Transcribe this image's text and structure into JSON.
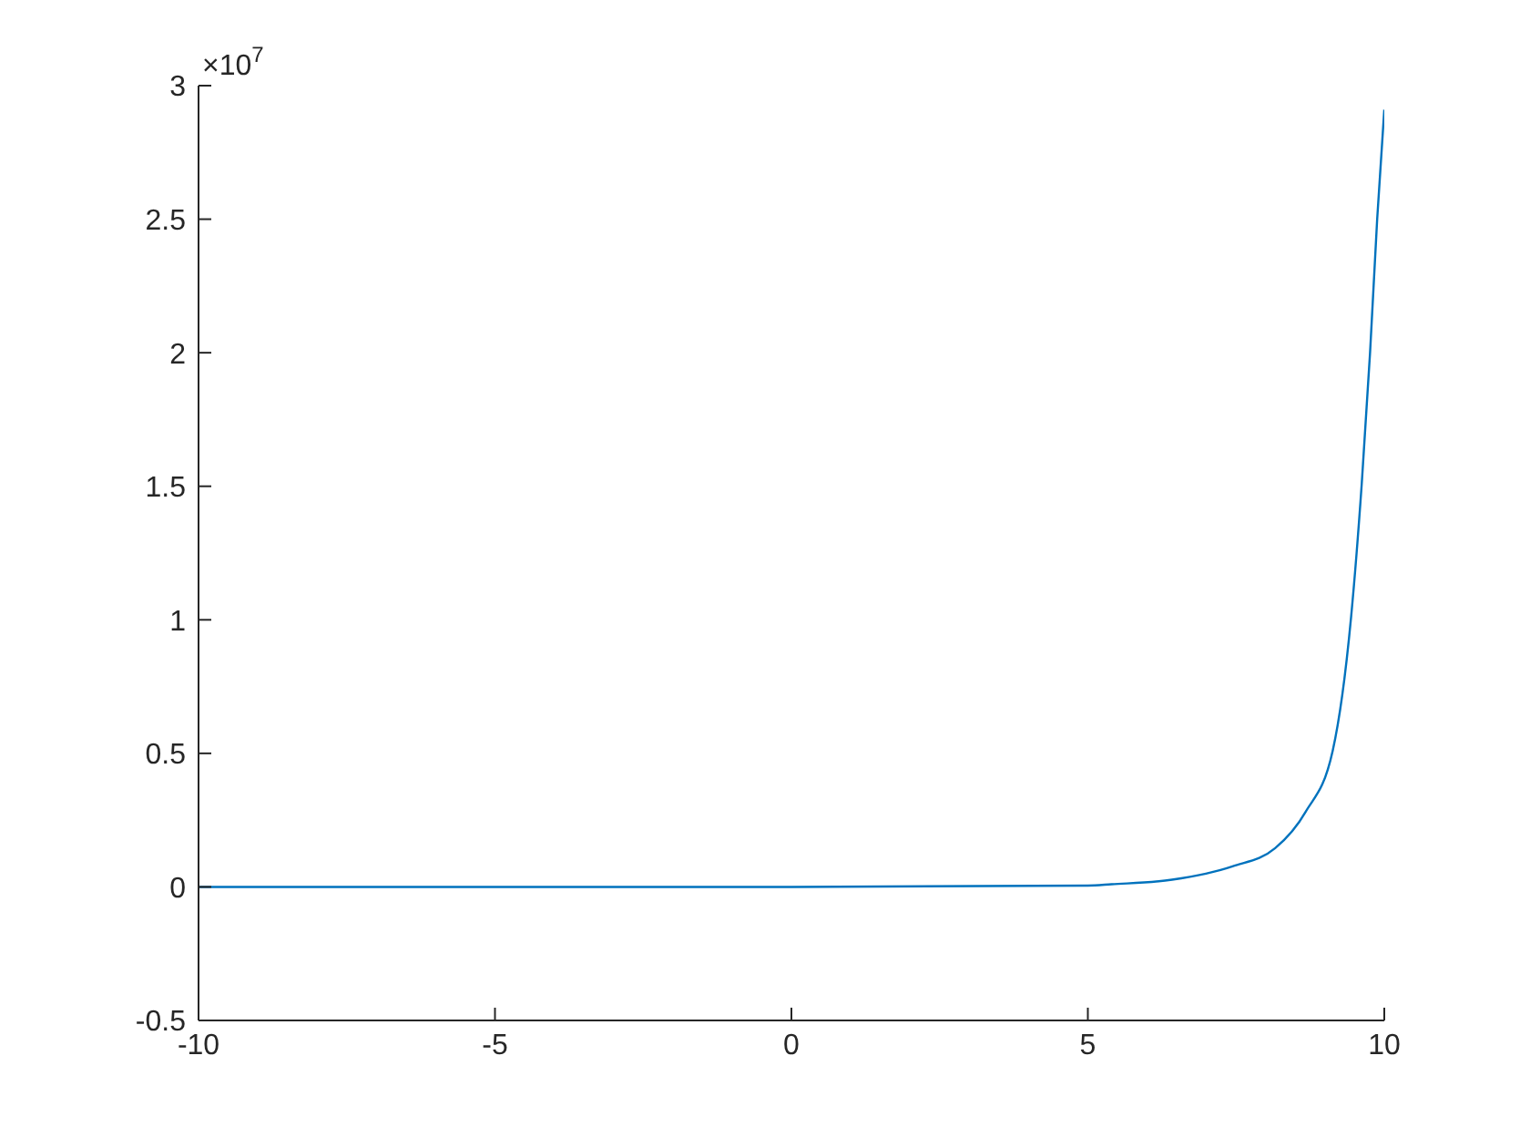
{
  "chart_data": {
    "type": "line",
    "annotations": [
      "×10$^{7}$"
    ],
    "x": [
      -10,
      -5,
      0,
      5,
      5.4,
      6.42,
      7.44,
      8.16,
      8.67,
      9.13,
      9.44,
      9.62,
      9.76,
      9.88,
      10
    ],
    "series": [
      {
        "color": "#0072bd",
        "values": [
          0,
          0,
          0,
          0.005,
          0.01,
          0.027,
          0.077,
          0.145,
          0.28,
          0.51,
          1.01,
          1.51,
          2.0,
          2.5,
          2.91
        ]
      }
    ],
    "xlim": [
      -10,
      10
    ],
    "xticks": [
      -10,
      -5,
      0,
      5,
      10
    ],
    "ylim": [
      -0.5,
      3
    ],
    "yticks": [
      -0.5,
      0,
      0.5,
      1,
      1.5,
      2,
      2.5,
      3
    ],
    "grid": false,
    "legend": false,
    "marker": "none",
    "line_style": "solid"
  }
}
